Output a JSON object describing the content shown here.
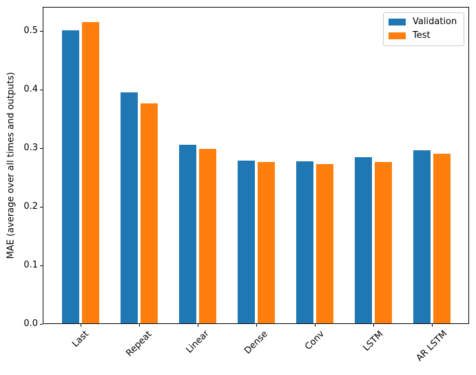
{
  "chart_data": {
    "type": "bar",
    "title": "",
    "xlabel": "",
    "ylabel": "MAE (average over all times and outputs)",
    "categories": [
      "Last",
      "Repeat",
      "Linear",
      "Dense",
      "Conv",
      "LSTM",
      "AR LSTM"
    ],
    "series": [
      {
        "name": "Validation",
        "color": "#1f77b4",
        "values": [
          0.501,
          0.395,
          0.306,
          0.279,
          0.278,
          0.285,
          0.297
        ]
      },
      {
        "name": "Test",
        "color": "#ff7f0e",
        "values": [
          0.515,
          0.377,
          0.299,
          0.276,
          0.273,
          0.276,
          0.291
        ]
      }
    ],
    "ylim": [
      0,
      0.5412
    ],
    "yticks": [
      0,
      0.1,
      0.2,
      0.3,
      0.4,
      0.5
    ],
    "ytick_labels": [
      "0.0",
      "0.1",
      "0.2",
      "0.3",
      "0.4",
      "0.5"
    ],
    "grid": false,
    "legend_position": "upper right",
    "background_color": "#ffffff",
    "axis_color": "#000000"
  }
}
